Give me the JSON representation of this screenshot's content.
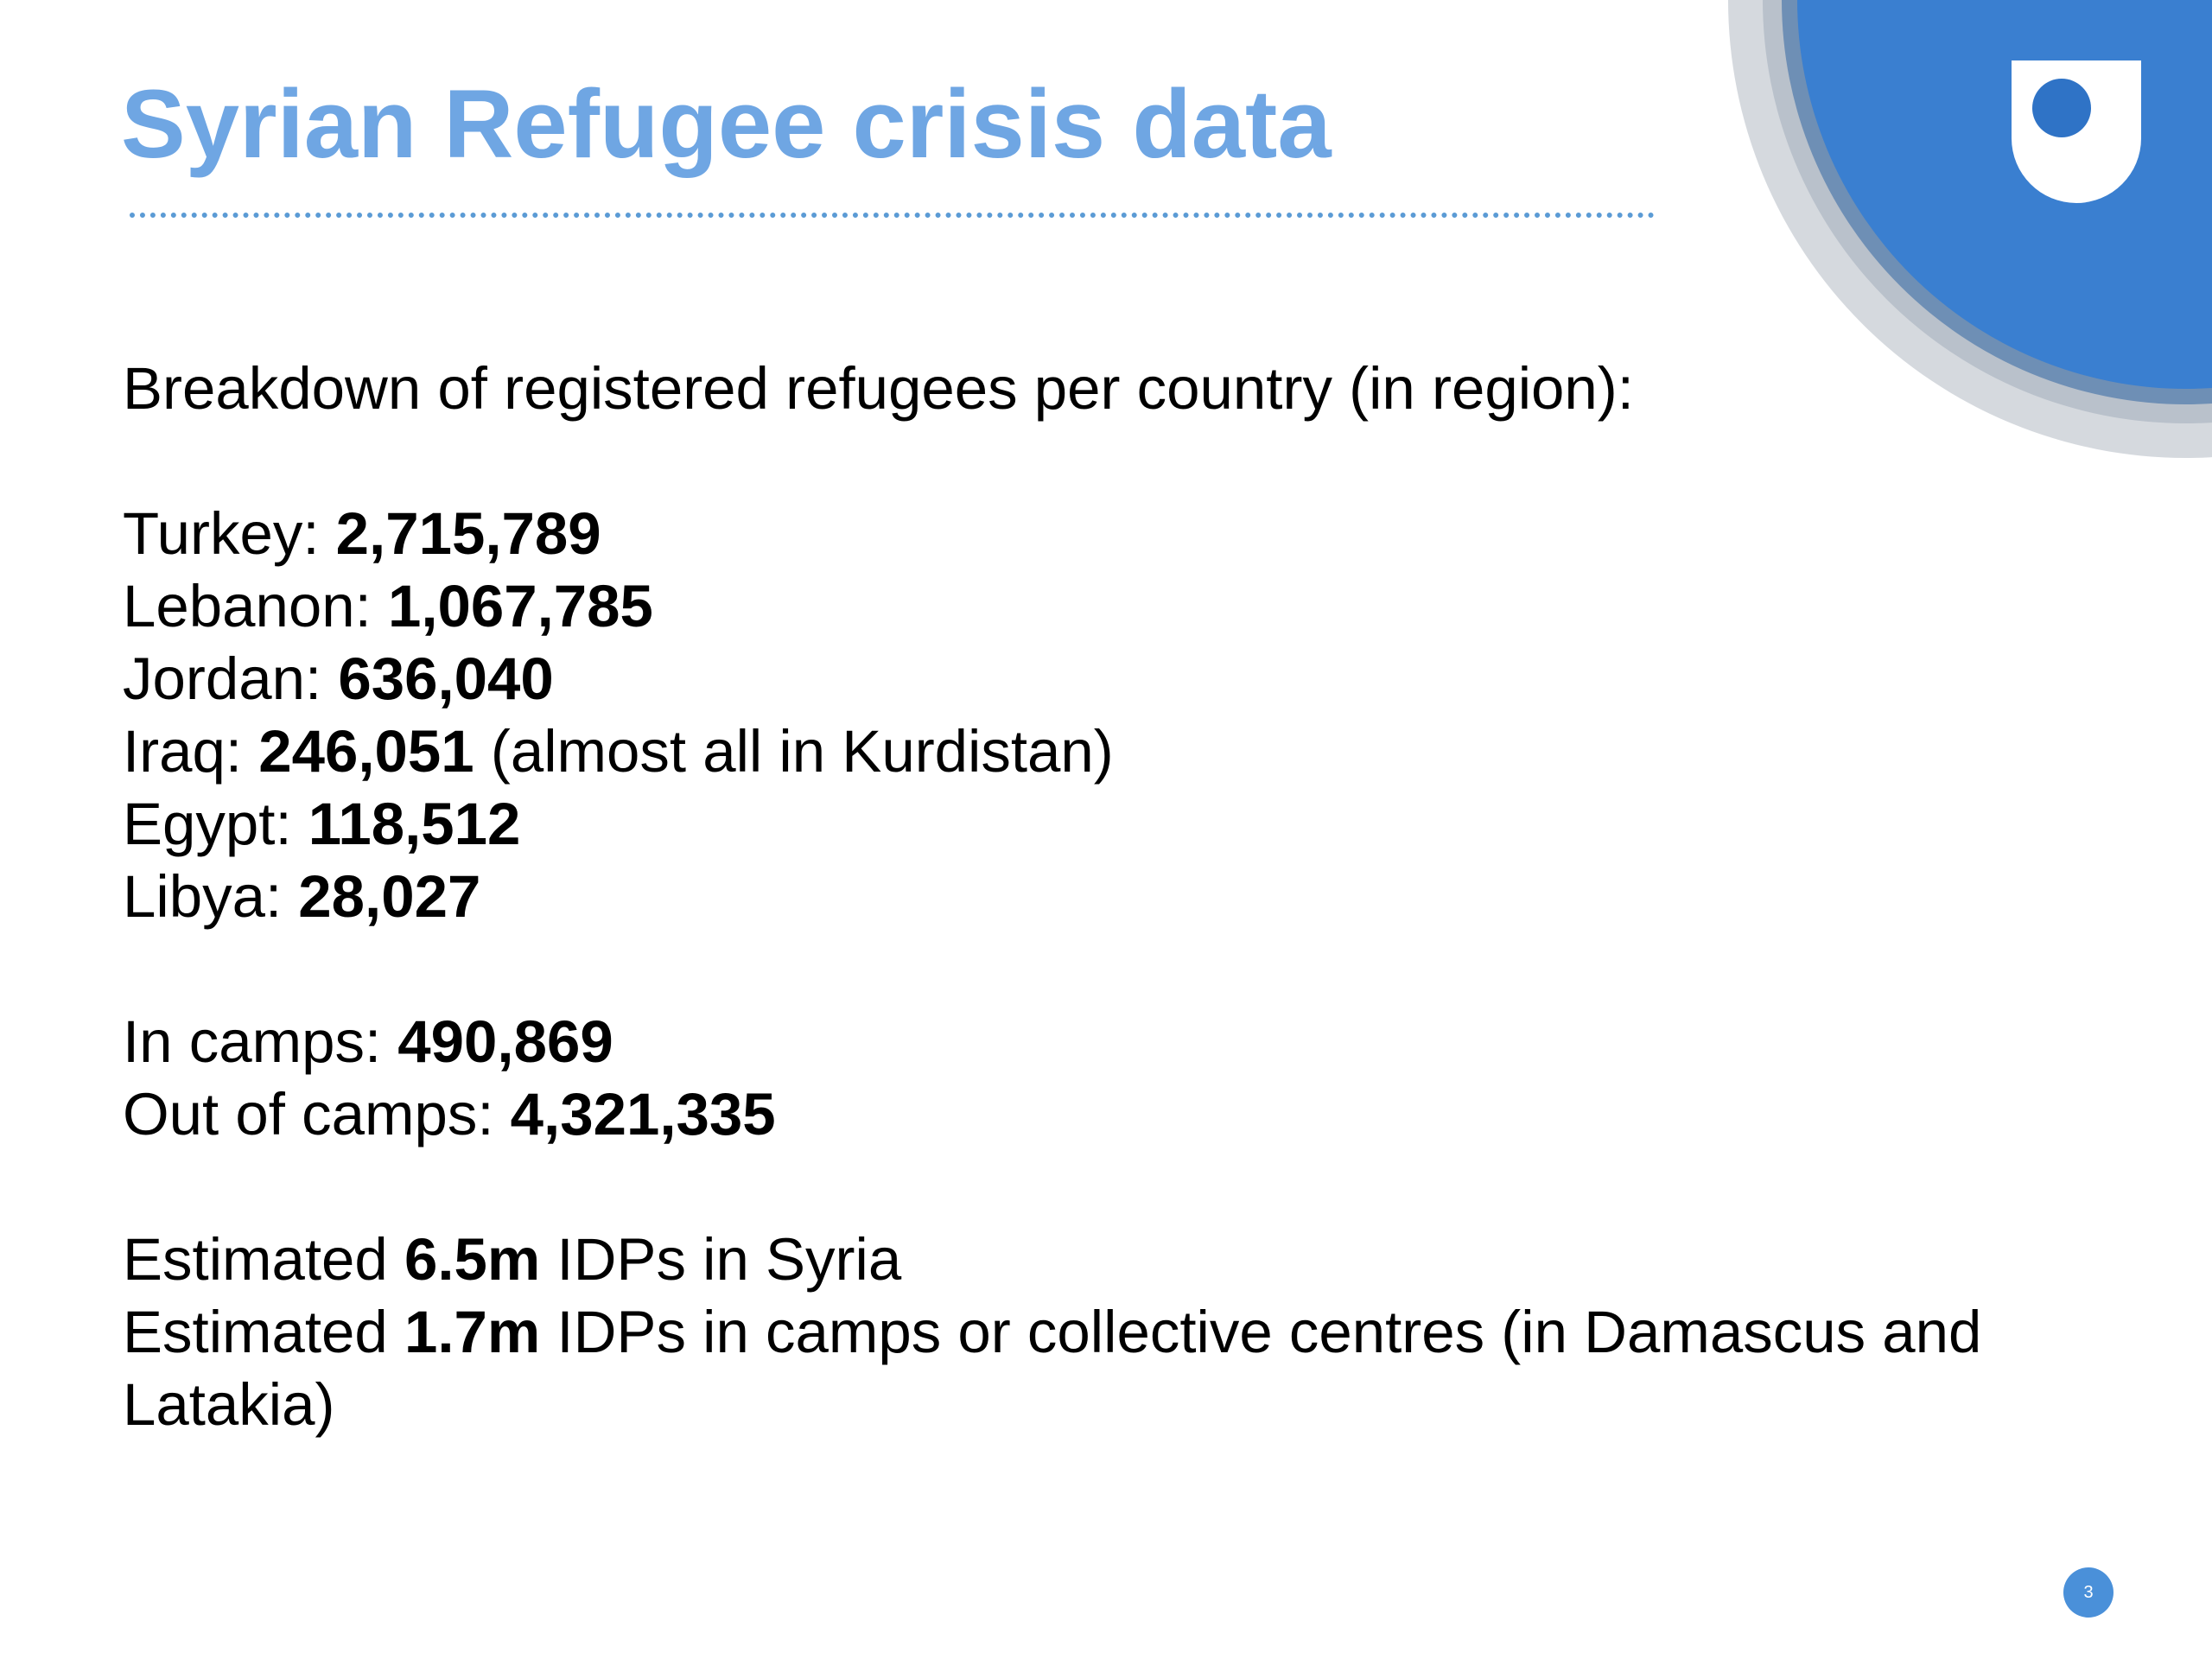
{
  "colors": {
    "title": "#6fa6e3",
    "divider": "#5b9bd5",
    "logo_blue": "#3a7fd0",
    "logo_grey": "#c9ced4",
    "badge": "#4a90d9"
  },
  "logo": {
    "icon": "open-university-shield-logo"
  },
  "title": "Syrian Refugee crisis data",
  "intro": "Breakdown of registered refugees per country (in region):",
  "countries": [
    {
      "label": "Turkey:",
      "value": "2,715,789",
      "note": ""
    },
    {
      "label": "Lebanon:",
      "value": "1,067,785",
      "note": ""
    },
    {
      "label": "Jordan:",
      "value": "636,040",
      "note": ""
    },
    {
      "label": "Iraq:",
      "value": "246,051",
      "note": "(almost all in Kurdistan)"
    },
    {
      "label": "Egypt:",
      "value": "118,512",
      "note": ""
    },
    {
      "label": "Libya:",
      "value": "28,027",
      "note": ""
    }
  ],
  "camps": [
    {
      "label": "In camps:",
      "value": "490,869"
    },
    {
      "label": "Out of camps:",
      "value": "4,321,335"
    }
  ],
  "idps": [
    {
      "prefix": "Estimated",
      "value": "6.5m",
      "suffix": "IDPs in Syria"
    },
    {
      "prefix": "Estimated",
      "value": "1.7m",
      "suffix": "IDPs in camps or collective centres (in Damascus and Latakia)"
    }
  ],
  "page_number": "3"
}
